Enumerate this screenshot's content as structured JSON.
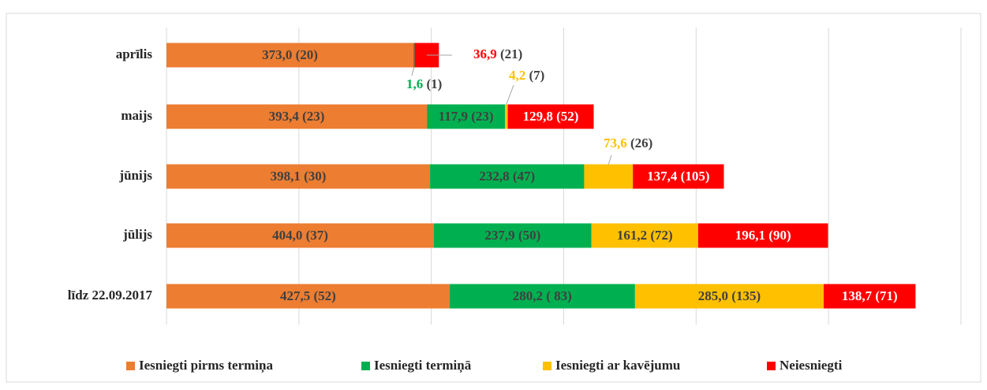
{
  "chart_data": {
    "type": "stacked_bar",
    "orientation": "horizontal",
    "categories": [
      "aprīlis",
      "maijs",
      "jūnijs",
      "jūlijs",
      "līdz  22.09.2017"
    ],
    "series": [
      {
        "name": "Iesniegti pirms termiņa",
        "color": "#ED7D31",
        "values": [
          373.0,
          393.4,
          398.1,
          404.0,
          427.5
        ],
        "value_labels": [
          "373,0 (20)",
          "393,4 (23)",
          "398,1 (30)",
          "404,0 (37)",
          "427,5 (52)"
        ]
      },
      {
        "name": "Iesniegti termiņā",
        "color": "#00B050",
        "values": [
          1.6,
          117.9,
          232.8,
          237.9,
          280.2
        ],
        "value_labels": [
          "1,6 (1)",
          "117,9 (23)",
          "232,8 (47)",
          "237,9 (50)",
          "280,2 ( 83)"
        ]
      },
      {
        "name": "Iesniegti ar kavējumu",
        "color": "#FFC000",
        "values": [
          null,
          4.2,
          73.6,
          161.2,
          285.0
        ],
        "value_labels": [
          null,
          "4,2 (7)",
          "73,6 (26)",
          "161,2 (72)",
          "285,0 (135)"
        ]
      },
      {
        "name": "Neiesniegti",
        "color": "#FF0000",
        "values": [
          36.9,
          129.8,
          137.4,
          196.1,
          138.7
        ],
        "value_labels": [
          "36,9 (21)",
          "129,8 (52)",
          "137,4 (105)",
          "196,1 (90)",
          "138,7 (71)"
        ]
      }
    ],
    "xlim": [
      0,
      1200
    ],
    "xticks": [
      0,
      200,
      400,
      600,
      800,
      1000,
      1200
    ],
    "grid": true,
    "legend": "bottom"
  }
}
